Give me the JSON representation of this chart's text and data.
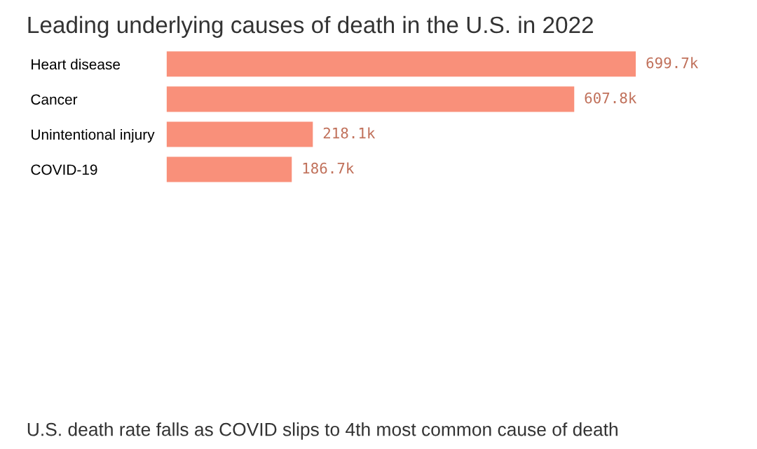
{
  "chart_data": {
    "type": "bar",
    "orientation": "horizontal",
    "title": "Leading underlying causes of death in the U.S. in 2022",
    "categories": [
      "Heart disease",
      "Cancer",
      "Unintentional injury",
      "COVID-19"
    ],
    "values": [
      699.7,
      607.8,
      218.1,
      186.7
    ],
    "value_labels": [
      "699.7k",
      "607.8k",
      "218.1k",
      "186.7k"
    ],
    "color": "#f9907a",
    "grid": false,
    "legend": false,
    "annotations": [
      "U.S. death rate falls as COVID slips to 4th most common cause of death"
    ]
  }
}
